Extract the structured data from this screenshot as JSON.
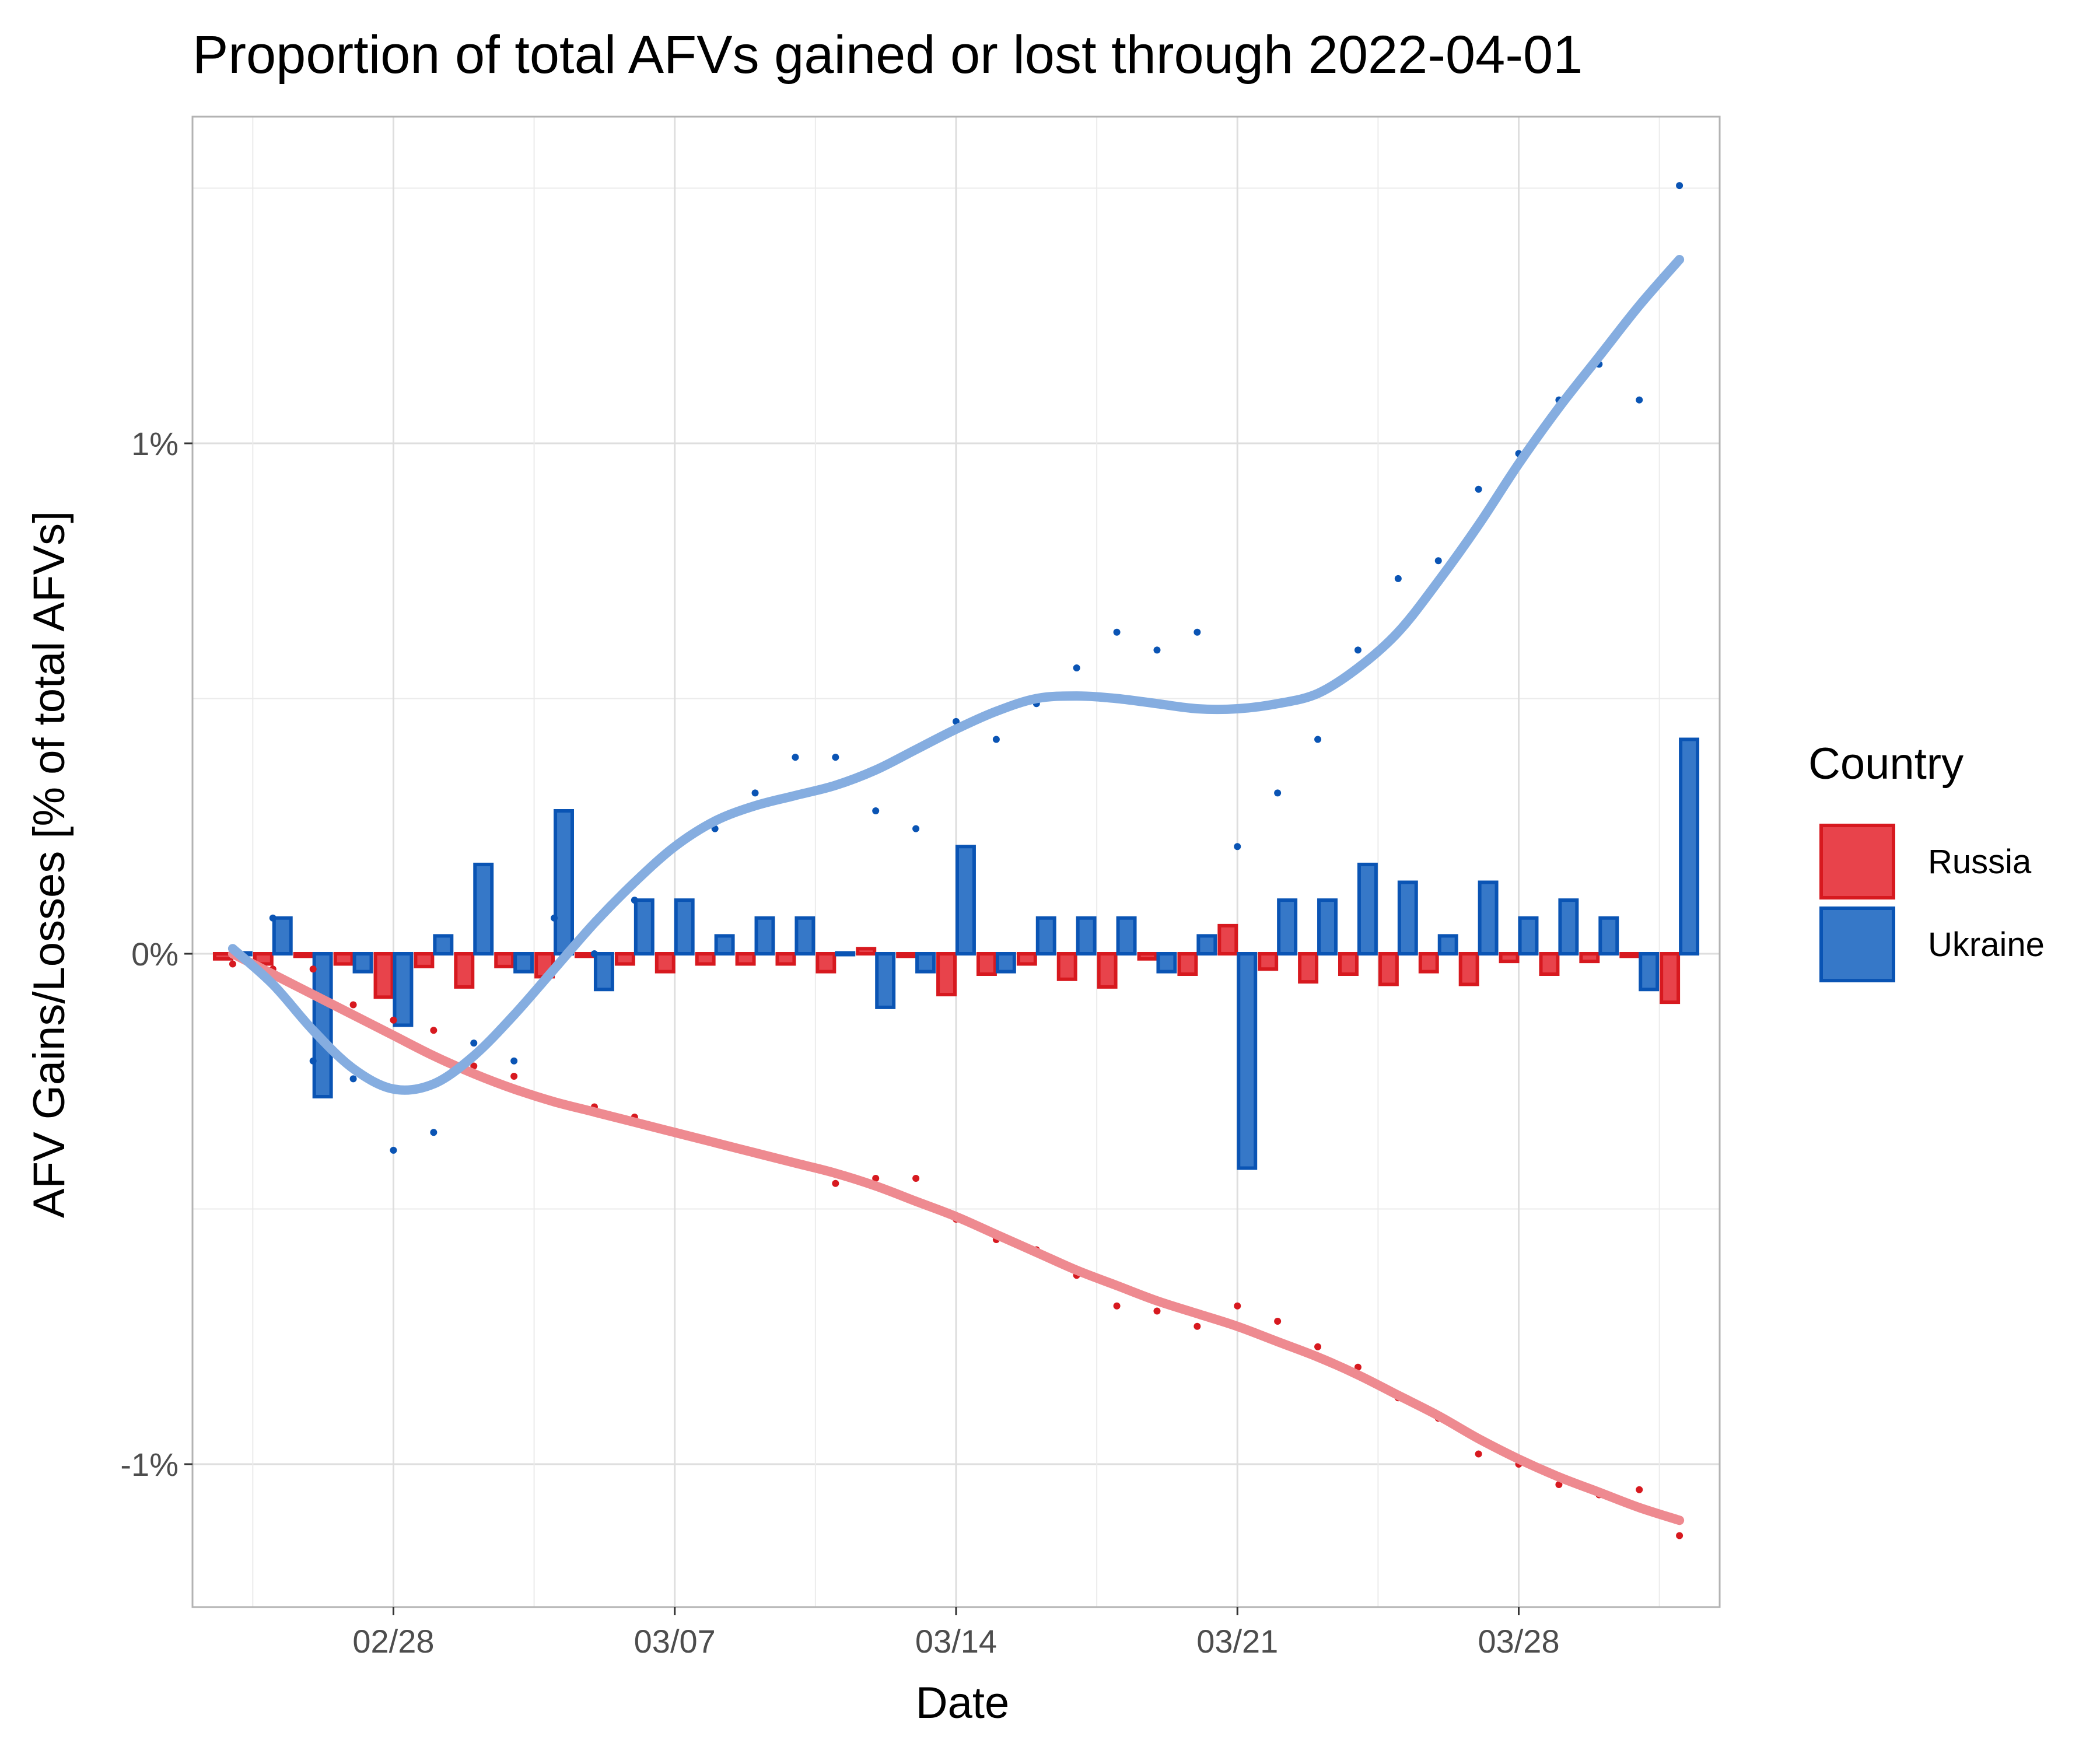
{
  "chart_data": {
    "type": "bar",
    "title": "Proportion of total AFVs gained or lost through 2022-04-01",
    "xlabel": "Date",
    "ylabel": "AFV Gains/Losses [% of total AFVs]",
    "x_ticks": [
      "02/28",
      "03/07",
      "03/14",
      "03/21",
      "03/28"
    ],
    "x_tick_day_index": [
      4,
      11,
      18,
      25,
      32
    ],
    "y_ticks": [
      "-1%",
      "0%",
      "1%"
    ],
    "y_tick_values": [
      -1,
      0,
      1
    ],
    "xlim": [
      "2022-02-23",
      "2022-04-02"
    ],
    "ylim": [
      -1.28,
      1.64
    ],
    "grid": true,
    "legend": {
      "title": "Country",
      "position": "right"
    },
    "dates": [
      "2022-02-24",
      "2022-02-25",
      "2022-02-26",
      "2022-02-27",
      "2022-02-28",
      "2022-03-01",
      "2022-03-02",
      "2022-03-03",
      "2022-03-04",
      "2022-03-05",
      "2022-03-06",
      "2022-03-07",
      "2022-03-08",
      "2022-03-09",
      "2022-03-10",
      "2022-03-11",
      "2022-03-12",
      "2022-03-13",
      "2022-03-14",
      "2022-03-15",
      "2022-03-16",
      "2022-03-17",
      "2022-03-18",
      "2022-03-19",
      "2022-03-20",
      "2022-03-21",
      "2022-03-22",
      "2022-03-23",
      "2022-03-24",
      "2022-03-25",
      "2022-03-26",
      "2022-03-27",
      "2022-03-28",
      "2022-03-29",
      "2022-03-30",
      "2022-03-31",
      "2022-04-01"
    ],
    "series": [
      {
        "name": "Russia",
        "fill": "#e8434b",
        "stroke": "#d7191f",
        "smooth_color": "#ee8a90",
        "daily_change": [
          -0.01,
          -0.02,
          -0.005,
          -0.02,
          -0.085,
          -0.025,
          -0.065,
          -0.025,
          -0.045,
          -0.005,
          -0.02,
          -0.035,
          -0.02,
          -0.02,
          -0.02,
          -0.035,
          0.01,
          -0.005,
          -0.08,
          -0.04,
          -0.02,
          -0.05,
          -0.065,
          -0.01,
          -0.04,
          0.055,
          -0.03,
          -0.055,
          -0.04,
          -0.06,
          -0.035,
          -0.06,
          -0.015,
          -0.04,
          -0.015,
          -0.005,
          -0.095
        ],
        "cumulative": [
          -0.02,
          -0.03,
          -0.03,
          -0.1,
          -0.13,
          -0.15,
          -0.22,
          -0.24,
          -0.29,
          -0.3,
          -0.32,
          -0.35,
          -0.37,
          -0.39,
          -0.41,
          -0.45,
          -0.44,
          -0.44,
          -0.52,
          -0.56,
          -0.58,
          -0.63,
          -0.69,
          -0.7,
          -0.73,
          -0.69,
          -0.72,
          -0.77,
          -0.81,
          -0.87,
          -0.91,
          -0.98,
          -1.0,
          -1.04,
          -1.06,
          -1.05,
          -1.14
        ],
        "smooth": [
          0.0,
          -0.04,
          -0.08,
          -0.12,
          -0.16,
          -0.2,
          -0.235,
          -0.265,
          -0.29,
          -0.31,
          -0.33,
          -0.35,
          -0.37,
          -0.39,
          -0.41,
          -0.43,
          -0.455,
          -0.485,
          -0.515,
          -0.55,
          -0.585,
          -0.62,
          -0.65,
          -0.68,
          -0.705,
          -0.73,
          -0.76,
          -0.79,
          -0.825,
          -0.865,
          -0.905,
          -0.95,
          -0.99,
          -1.025,
          -1.055,
          -1.085,
          -1.11
        ]
      },
      {
        "name": "Ukraine",
        "fill": "#3678c8",
        "stroke": "#0a54b4",
        "smooth_color": "#85ade0",
        "daily_change": [
          0.0,
          0.07,
          -0.28,
          -0.035,
          -0.14,
          0.035,
          0.175,
          -0.035,
          0.28,
          -0.07,
          0.105,
          0.105,
          0.035,
          0.07,
          0.07,
          0.0,
          -0.105,
          -0.035,
          0.21,
          -0.035,
          0.07,
          0.07,
          0.07,
          -0.035,
          0.035,
          -0.42,
          0.105,
          0.105,
          0.175,
          0.14,
          0.035,
          0.14,
          0.07,
          0.105,
          0.07,
          -0.07,
          0.42
        ],
        "cumulative": [
          0.0,
          0.07,
          -0.21,
          -0.245,
          -0.385,
          -0.35,
          -0.175,
          -0.21,
          0.07,
          0.0,
          0.105,
          0.21,
          0.245,
          0.315,
          0.385,
          0.385,
          0.28,
          0.245,
          0.455,
          0.42,
          0.49,
          0.56,
          0.63,
          0.595,
          0.63,
          0.21,
          0.315,
          0.42,
          0.595,
          0.735,
          0.77,
          0.91,
          0.98,
          1.085,
          1.155,
          1.085,
          1.505
        ]
      }
    ],
    "ukraine_smooth_points": [
      [
        0,
        0.01
      ],
      [
        1,
        -0.06
      ],
      [
        2,
        -0.15
      ],
      [
        3,
        -0.225
      ],
      [
        4,
        -0.265
      ],
      [
        5,
        -0.255
      ],
      [
        6,
        -0.2
      ],
      [
        7,
        -0.12
      ],
      [
        8,
        -0.03
      ],
      [
        9,
        0.06
      ],
      [
        10,
        0.14
      ],
      [
        11,
        0.21
      ],
      [
        12,
        0.26
      ],
      [
        13,
        0.29
      ],
      [
        14,
        0.31
      ],
      [
        15,
        0.33
      ],
      [
        16,
        0.36
      ],
      [
        17,
        0.4
      ],
      [
        18,
        0.44
      ],
      [
        19,
        0.475
      ],
      [
        20,
        0.5
      ],
      [
        21,
        0.505
      ],
      [
        22,
        0.5
      ],
      [
        23,
        0.49
      ],
      [
        24,
        0.48
      ],
      [
        25,
        0.48
      ],
      [
        26,
        0.49
      ],
      [
        27,
        0.51
      ],
      [
        28,
        0.56
      ],
      [
        29,
        0.63
      ],
      [
        30,
        0.73
      ],
      [
        31,
        0.84
      ],
      [
        32,
        0.96
      ],
      [
        33,
        1.07
      ],
      [
        34,
        1.17
      ],
      [
        35,
        1.27
      ],
      [
        36,
        1.36
      ]
    ]
  }
}
